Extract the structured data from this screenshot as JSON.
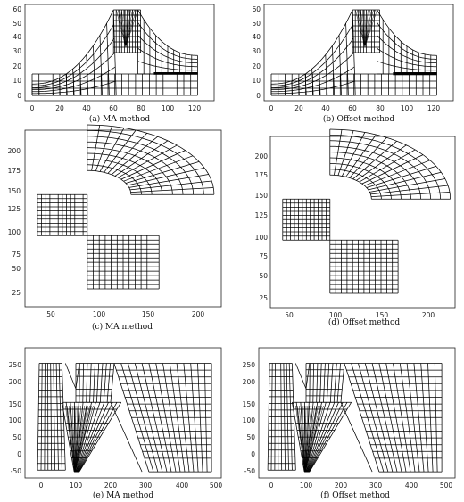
{
  "panels": [
    {
      "id": "a",
      "caption": "(a)  MA method",
      "x_ticks": [
        "0",
        "20",
        "40",
        "60",
        "80",
        "100",
        "120"
      ],
      "y_ticks": [
        "0",
        "10",
        "20",
        "30",
        "40",
        "50",
        "60"
      ]
    },
    {
      "id": "b",
      "caption": "(b) Offset method",
      "x_ticks": [
        "0",
        "20",
        "40",
        "60",
        "80",
        "100",
        "120"
      ],
      "y_ticks": [
        "0",
        "10",
        "20",
        "30",
        "40",
        "50",
        "60"
      ]
    },
    {
      "id": "c",
      "caption": "(c)  MA method",
      "x_ticks": [
        "50",
        "100",
        "150",
        "200"
      ],
      "y_ticks": [
        "25",
        "50",
        "75",
        "100",
        "125",
        "150",
        "175",
        "200"
      ]
    },
    {
      "id": "d",
      "caption": "(d) Offset method",
      "x_ticks": [
        "50",
        "100",
        "150",
        "200"
      ],
      "y_ticks": [
        "25",
        "50",
        "75",
        "100",
        "125",
        "150",
        "175",
        "200"
      ]
    },
    {
      "id": "e",
      "caption": "(e)  MA method",
      "x_ticks": [
        "0",
        "100",
        "200",
        "300",
        "400",
        "500"
      ],
      "y_ticks": [
        "-50",
        "0",
        "50",
        "100",
        "150",
        "200",
        "250"
      ]
    },
    {
      "id": "f",
      "caption": "(f)  Offset method",
      "x_ticks": [
        "0",
        "100",
        "200",
        "300",
        "400",
        "500"
      ],
      "y_ticks": [
        "-50",
        "0",
        "50",
        "100",
        "150",
        "200",
        "250"
      ]
    }
  ]
}
